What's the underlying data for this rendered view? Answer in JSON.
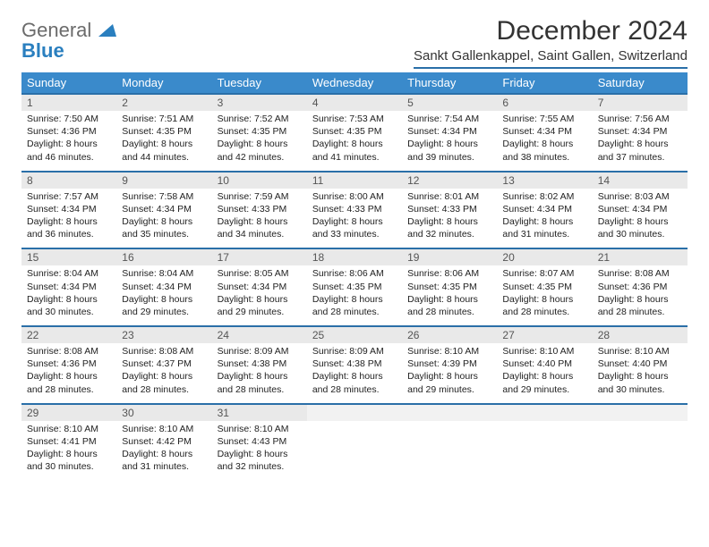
{
  "logo": {
    "line1": "General",
    "line2": "Blue"
  },
  "title": "December 2024",
  "subtitle": "Sankt Gallenkappel, Saint Gallen, Switzerland",
  "colors": {
    "header_bg": "#3a8acb",
    "header_text": "#ffffff",
    "border": "#2a6fa8",
    "daynum_bg": "#e9e9e9",
    "body_text": "#222222",
    "logo_gray": "#6b6b6b",
    "logo_blue": "#2a7fbf"
  },
  "days_of_week": [
    "Sunday",
    "Monday",
    "Tuesday",
    "Wednesday",
    "Thursday",
    "Friday",
    "Saturday"
  ],
  "weeks": [
    [
      {
        "num": "1",
        "sunrise": "Sunrise: 7:50 AM",
        "sunset": "Sunset: 4:36 PM",
        "daylight1": "Daylight: 8 hours",
        "daylight2": "and 46 minutes."
      },
      {
        "num": "2",
        "sunrise": "Sunrise: 7:51 AM",
        "sunset": "Sunset: 4:35 PM",
        "daylight1": "Daylight: 8 hours",
        "daylight2": "and 44 minutes."
      },
      {
        "num": "3",
        "sunrise": "Sunrise: 7:52 AM",
        "sunset": "Sunset: 4:35 PM",
        "daylight1": "Daylight: 8 hours",
        "daylight2": "and 42 minutes."
      },
      {
        "num": "4",
        "sunrise": "Sunrise: 7:53 AM",
        "sunset": "Sunset: 4:35 PM",
        "daylight1": "Daylight: 8 hours",
        "daylight2": "and 41 minutes."
      },
      {
        "num": "5",
        "sunrise": "Sunrise: 7:54 AM",
        "sunset": "Sunset: 4:34 PM",
        "daylight1": "Daylight: 8 hours",
        "daylight2": "and 39 minutes."
      },
      {
        "num": "6",
        "sunrise": "Sunrise: 7:55 AM",
        "sunset": "Sunset: 4:34 PM",
        "daylight1": "Daylight: 8 hours",
        "daylight2": "and 38 minutes."
      },
      {
        "num": "7",
        "sunrise": "Sunrise: 7:56 AM",
        "sunset": "Sunset: 4:34 PM",
        "daylight1": "Daylight: 8 hours",
        "daylight2": "and 37 minutes."
      }
    ],
    [
      {
        "num": "8",
        "sunrise": "Sunrise: 7:57 AM",
        "sunset": "Sunset: 4:34 PM",
        "daylight1": "Daylight: 8 hours",
        "daylight2": "and 36 minutes."
      },
      {
        "num": "9",
        "sunrise": "Sunrise: 7:58 AM",
        "sunset": "Sunset: 4:34 PM",
        "daylight1": "Daylight: 8 hours",
        "daylight2": "and 35 minutes."
      },
      {
        "num": "10",
        "sunrise": "Sunrise: 7:59 AM",
        "sunset": "Sunset: 4:33 PM",
        "daylight1": "Daylight: 8 hours",
        "daylight2": "and 34 minutes."
      },
      {
        "num": "11",
        "sunrise": "Sunrise: 8:00 AM",
        "sunset": "Sunset: 4:33 PM",
        "daylight1": "Daylight: 8 hours",
        "daylight2": "and 33 minutes."
      },
      {
        "num": "12",
        "sunrise": "Sunrise: 8:01 AM",
        "sunset": "Sunset: 4:33 PM",
        "daylight1": "Daylight: 8 hours",
        "daylight2": "and 32 minutes."
      },
      {
        "num": "13",
        "sunrise": "Sunrise: 8:02 AM",
        "sunset": "Sunset: 4:34 PM",
        "daylight1": "Daylight: 8 hours",
        "daylight2": "and 31 minutes."
      },
      {
        "num": "14",
        "sunrise": "Sunrise: 8:03 AM",
        "sunset": "Sunset: 4:34 PM",
        "daylight1": "Daylight: 8 hours",
        "daylight2": "and 30 minutes."
      }
    ],
    [
      {
        "num": "15",
        "sunrise": "Sunrise: 8:04 AM",
        "sunset": "Sunset: 4:34 PM",
        "daylight1": "Daylight: 8 hours",
        "daylight2": "and 30 minutes."
      },
      {
        "num": "16",
        "sunrise": "Sunrise: 8:04 AM",
        "sunset": "Sunset: 4:34 PM",
        "daylight1": "Daylight: 8 hours",
        "daylight2": "and 29 minutes."
      },
      {
        "num": "17",
        "sunrise": "Sunrise: 8:05 AM",
        "sunset": "Sunset: 4:34 PM",
        "daylight1": "Daylight: 8 hours",
        "daylight2": "and 29 minutes."
      },
      {
        "num": "18",
        "sunrise": "Sunrise: 8:06 AM",
        "sunset": "Sunset: 4:35 PM",
        "daylight1": "Daylight: 8 hours",
        "daylight2": "and 28 minutes."
      },
      {
        "num": "19",
        "sunrise": "Sunrise: 8:06 AM",
        "sunset": "Sunset: 4:35 PM",
        "daylight1": "Daylight: 8 hours",
        "daylight2": "and 28 minutes."
      },
      {
        "num": "20",
        "sunrise": "Sunrise: 8:07 AM",
        "sunset": "Sunset: 4:35 PM",
        "daylight1": "Daylight: 8 hours",
        "daylight2": "and 28 minutes."
      },
      {
        "num": "21",
        "sunrise": "Sunrise: 8:08 AM",
        "sunset": "Sunset: 4:36 PM",
        "daylight1": "Daylight: 8 hours",
        "daylight2": "and 28 minutes."
      }
    ],
    [
      {
        "num": "22",
        "sunrise": "Sunrise: 8:08 AM",
        "sunset": "Sunset: 4:36 PM",
        "daylight1": "Daylight: 8 hours",
        "daylight2": "and 28 minutes."
      },
      {
        "num": "23",
        "sunrise": "Sunrise: 8:08 AM",
        "sunset": "Sunset: 4:37 PM",
        "daylight1": "Daylight: 8 hours",
        "daylight2": "and 28 minutes."
      },
      {
        "num": "24",
        "sunrise": "Sunrise: 8:09 AM",
        "sunset": "Sunset: 4:38 PM",
        "daylight1": "Daylight: 8 hours",
        "daylight2": "and 28 minutes."
      },
      {
        "num": "25",
        "sunrise": "Sunrise: 8:09 AM",
        "sunset": "Sunset: 4:38 PM",
        "daylight1": "Daylight: 8 hours",
        "daylight2": "and 28 minutes."
      },
      {
        "num": "26",
        "sunrise": "Sunrise: 8:10 AM",
        "sunset": "Sunset: 4:39 PM",
        "daylight1": "Daylight: 8 hours",
        "daylight2": "and 29 minutes."
      },
      {
        "num": "27",
        "sunrise": "Sunrise: 8:10 AM",
        "sunset": "Sunset: 4:40 PM",
        "daylight1": "Daylight: 8 hours",
        "daylight2": "and 29 minutes."
      },
      {
        "num": "28",
        "sunrise": "Sunrise: 8:10 AM",
        "sunset": "Sunset: 4:40 PM",
        "daylight1": "Daylight: 8 hours",
        "daylight2": "and 30 minutes."
      }
    ],
    [
      {
        "num": "29",
        "sunrise": "Sunrise: 8:10 AM",
        "sunset": "Sunset: 4:41 PM",
        "daylight1": "Daylight: 8 hours",
        "daylight2": "and 30 minutes."
      },
      {
        "num": "30",
        "sunrise": "Sunrise: 8:10 AM",
        "sunset": "Sunset: 4:42 PM",
        "daylight1": "Daylight: 8 hours",
        "daylight2": "and 31 minutes."
      },
      {
        "num": "31",
        "sunrise": "Sunrise: 8:10 AM",
        "sunset": "Sunset: 4:43 PM",
        "daylight1": "Daylight: 8 hours",
        "daylight2": "and 32 minutes."
      },
      {
        "empty": true
      },
      {
        "empty": true
      },
      {
        "empty": true
      },
      {
        "empty": true
      }
    ]
  ]
}
